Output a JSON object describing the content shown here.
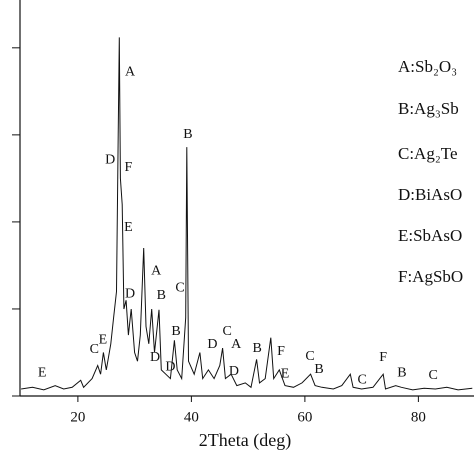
{
  "chart_data": {
    "type": "line",
    "x_label": "2Theta (deg)",
    "xlim": [
      9.8,
      89.8
    ],
    "xticks": [
      20,
      40,
      60,
      80
    ],
    "ylim": [
      0,
      4.4
    ],
    "yticks": [
      0,
      1,
      2,
      3,
      4
    ],
    "color": "#111111",
    "series": [
      {
        "name": null,
        "color": "#111111",
        "x": [
          10,
          12,
          14,
          16,
          17.5,
          19,
          20.5,
          21,
          22.5,
          23.5,
          24,
          24.5,
          25,
          25.8,
          26.3,
          26.8,
          27.1,
          27.3,
          27.5,
          27.8,
          28.1,
          28.5,
          28.9,
          29.4,
          30,
          30.5,
          31,
          31.6,
          32,
          32.5,
          33,
          33.5,
          34.3,
          34.7,
          35.5,
          36.3,
          37,
          37.5,
          38.3,
          39,
          39.2,
          39.5,
          40.5,
          41.5,
          42,
          43,
          44,
          45,
          45.5,
          46,
          47,
          48,
          49.5,
          50.5,
          51.5,
          52,
          53,
          54,
          54.5,
          55.5,
          56.5,
          58,
          59.5,
          61,
          61.8,
          63,
          65,
          66.5,
          68,
          68.5,
          70,
          72,
          73.8,
          74.2,
          76,
          77,
          79,
          81,
          83,
          85,
          87,
          89.5
        ],
        "values": [
          0.08,
          0.1,
          0.07,
          0.12,
          0.08,
          0.1,
          0.18,
          0.1,
          0.2,
          0.35,
          0.25,
          0.5,
          0.3,
          0.6,
          0.9,
          1.2,
          3.0,
          4.12,
          2.5,
          2.2,
          1.0,
          1.1,
          0.7,
          1.0,
          0.5,
          0.4,
          0.7,
          1.7,
          0.8,
          0.6,
          1.0,
          0.5,
          0.99,
          0.3,
          0.25,
          0.2,
          0.64,
          0.3,
          0.2,
          0.9,
          2.86,
          0.4,
          0.25,
          0.5,
          0.2,
          0.3,
          0.2,
          0.35,
          0.55,
          0.2,
          0.25,
          0.12,
          0.15,
          0.1,
          0.42,
          0.15,
          0.2,
          0.67,
          0.2,
          0.3,
          0.12,
          0.1,
          0.15,
          0.25,
          0.12,
          0.1,
          0.08,
          0.12,
          0.25,
          0.1,
          0.08,
          0.1,
          0.25,
          0.08,
          0.12,
          0.1,
          0.07,
          0.09,
          0.08,
          0.1,
          0.07,
          0.09
        ]
      }
    ],
    "annotations": [
      {
        "text": "E",
        "x": 13.7,
        "y": 0.26
      },
      {
        "text": "C",
        "x": 22.9,
        "y": 0.53
      },
      {
        "text": "E",
        "x": 24.4,
        "y": 0.64
      },
      {
        "text": "D",
        "x": 25.7,
        "y": 2.71
      },
      {
        "text": "A",
        "x": 29.2,
        "y": 3.72
      },
      {
        "text": "F",
        "x": 28.9,
        "y": 2.62
      },
      {
        "text": "E",
        "x": 28.9,
        "y": 1.93
      },
      {
        "text": "A",
        "x": 33.8,
        "y": 1.43
      },
      {
        "text": "D",
        "x": 29.2,
        "y": 1.17
      },
      {
        "text": "B",
        "x": 34.7,
        "y": 1.15
      },
      {
        "text": "C",
        "x": 38.0,
        "y": 1.24
      },
      {
        "text": "B",
        "x": 39.4,
        "y": 3.0
      },
      {
        "text": "B",
        "x": 37.3,
        "y": 0.74
      },
      {
        "text": "D",
        "x": 33.6,
        "y": 0.44
      },
      {
        "text": "D",
        "x": 36.3,
        "y": 0.33
      },
      {
        "text": "D",
        "x": 43.7,
        "y": 0.59
      },
      {
        "text": "C",
        "x": 46.3,
        "y": 0.74
      },
      {
        "text": "A",
        "x": 47.9,
        "y": 0.59
      },
      {
        "text": "D",
        "x": 47.5,
        "y": 0.28
      },
      {
        "text": "B",
        "x": 51.6,
        "y": 0.54
      },
      {
        "text": "F",
        "x": 55.8,
        "y": 0.51
      },
      {
        "text": "E",
        "x": 56.5,
        "y": 0.25
      },
      {
        "text": "C",
        "x": 60.9,
        "y": 0.45
      },
      {
        "text": "B",
        "x": 62.5,
        "y": 0.3
      },
      {
        "text": "C",
        "x": 70.1,
        "y": 0.18
      },
      {
        "text": "F",
        "x": 73.8,
        "y": 0.44
      },
      {
        "text": "B",
        "x": 77.1,
        "y": 0.26
      },
      {
        "text": "C",
        "x": 82.6,
        "y": 0.23
      }
    ],
    "legend_entries": [
      "A:Sb₂O₃",
      "B:Ag₃Sb",
      "C:Ag₂Te",
      "D:BiAsO",
      "E:SbAsO",
      "F:AgSbO"
    ]
  }
}
